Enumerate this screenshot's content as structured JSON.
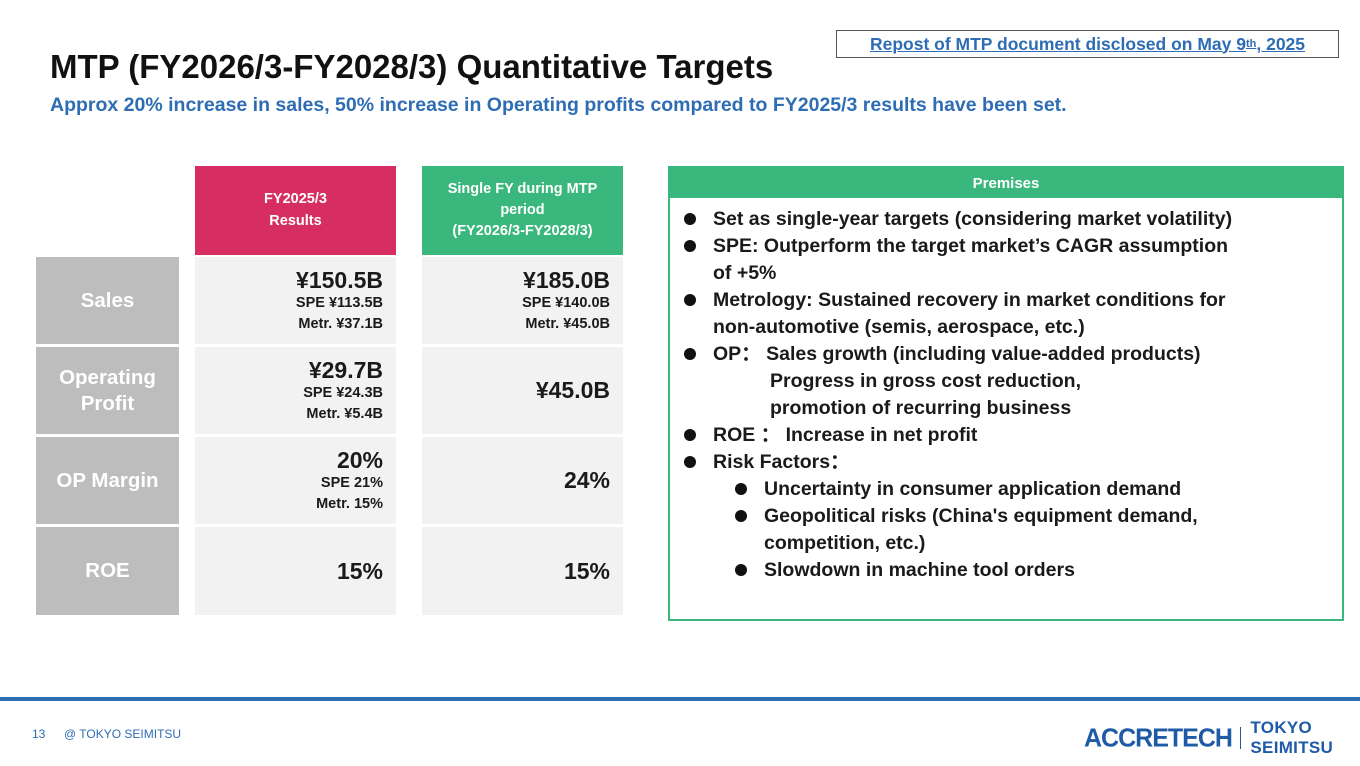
{
  "repost": {
    "pre": "Repost of MTP document disclosed on May 9",
    "sup": "th",
    "post": ", 2025"
  },
  "title": "MTP (FY2026/3-FY2028/3) Quantitative Targets",
  "subtitle": "Approx 20% increase in sales, 50% increase in Operating profits compared to FY2025/3 results have been set.",
  "table": {
    "col1_header": [
      "FY2025/3",
      "Results"
    ],
    "col2_header": [
      "Single FY during MTP",
      "period",
      "(FY2026/3-FY2028/3)"
    ],
    "rows": [
      {
        "label": "Sales",
        "c1_main": "¥150.5B",
        "c1_sub": [
          "SPE ¥113.5B",
          "Metr. ¥37.1B"
        ],
        "c2_main": "¥185.0B",
        "c2_sub": [
          "SPE ¥140.0B",
          "Metr. ¥45.0B"
        ]
      },
      {
        "label": [
          "Operating",
          "Profit"
        ],
        "c1_main": "¥29.7B",
        "c1_sub": [
          "SPE ¥24.3B",
          "Metr. ¥5.4B"
        ],
        "c2_main": "¥45.0B"
      },
      {
        "label": "OP Margin",
        "c1_main": "20%",
        "c1_sub": [
          "SPE 21%",
          "Metr. 15%"
        ],
        "c2_main": "24%"
      },
      {
        "label": "ROE",
        "c1_main": "15%",
        "c2_main": "15%"
      }
    ]
  },
  "premises": {
    "header": "Premises",
    "items": [
      {
        "lines": [
          "Set as single-year targets (considering market volatility)"
        ]
      },
      {
        "lines": [
          "SPE: Outperform the target market’s CAGR assumption",
          "of +5%"
        ]
      },
      {
        "lines": [
          "Metrology: Sustained recovery in market conditions for",
          "non-automotive (semis, aerospace, etc.)"
        ]
      },
      {
        "lines": [
          "OP： Sales growth (including value-added products)",
          "Progress in gross cost reduction,",
          "promotion of recurring business"
        ]
      },
      {
        "lines": [
          "ROE ： Increase in net profit"
        ]
      },
      {
        "lines": [
          "Risk Factors："
        ]
      }
    ],
    "sub_items": [
      {
        "lines": [
          "Uncertainty in consumer application demand"
        ]
      },
      {
        "lines": [
          "Geopolitical risks (China's equipment demand,",
          "competition, etc.)"
        ]
      },
      {
        "lines": [
          "Slowdown in machine tool orders"
        ]
      }
    ]
  },
  "footer": {
    "page_number": "13",
    "copyright": "@ TOKYO SEIMITSU",
    "logo_main": "ACCRETECH",
    "logo_sub": "TOKYO SEIMITSU"
  }
}
